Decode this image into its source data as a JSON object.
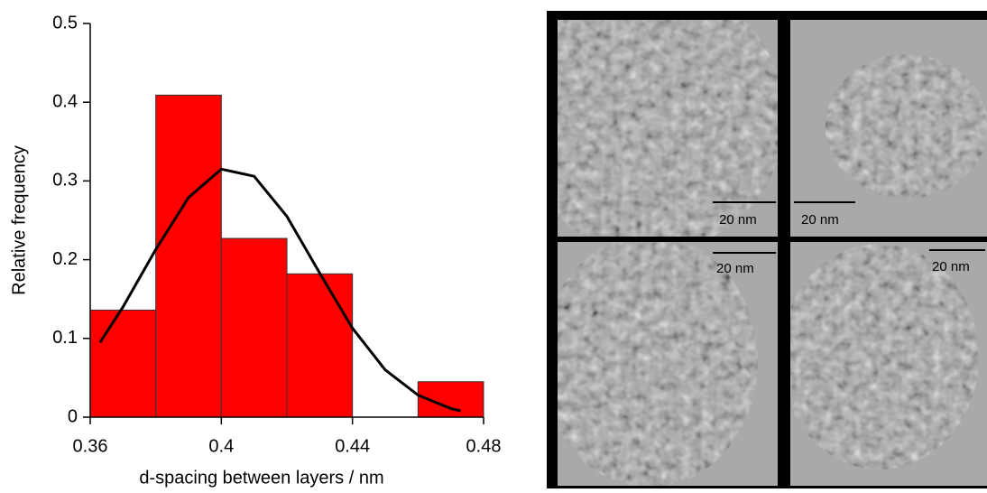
{
  "chart_data": {
    "type": "histogram",
    "xlabel": "d-spacing between layers / nm",
    "ylabel": "Relative frequency",
    "bins": [
      0.36,
      0.38,
      0.4,
      0.42,
      0.44,
      0.46,
      0.48
    ],
    "values": [
      0.136,
      0.409,
      0.227,
      0.182,
      0,
      0.045
    ],
    "color": "#ff0000",
    "fit": {
      "x": [
        0.363,
        0.37,
        0.38,
        0.39,
        0.4,
        0.41,
        0.42,
        0.43,
        0.44,
        0.45,
        0.46,
        0.47,
        0.473
      ],
      "values": [
        0.095,
        0.14,
        0.213,
        0.279,
        0.315,
        0.306,
        0.255,
        0.183,
        0.113,
        0.06,
        0.028,
        0.011,
        0.008
      ],
      "color": "#000000"
    },
    "xlim": [
      0.36,
      0.48
    ],
    "xticks": [
      0.36,
      0.4,
      0.44,
      0.48
    ],
    "ylim": [
      0,
      0.5
    ],
    "yticks": [
      0,
      0.1,
      0.2,
      0.3,
      0.4,
      0.5
    ]
  },
  "images": [
    {
      "scale_label": "20 nm"
    },
    {
      "scale_label": "20 nm"
    },
    {
      "scale_label": "20 nm"
    },
    {
      "scale_label": "20 nm"
    }
  ]
}
